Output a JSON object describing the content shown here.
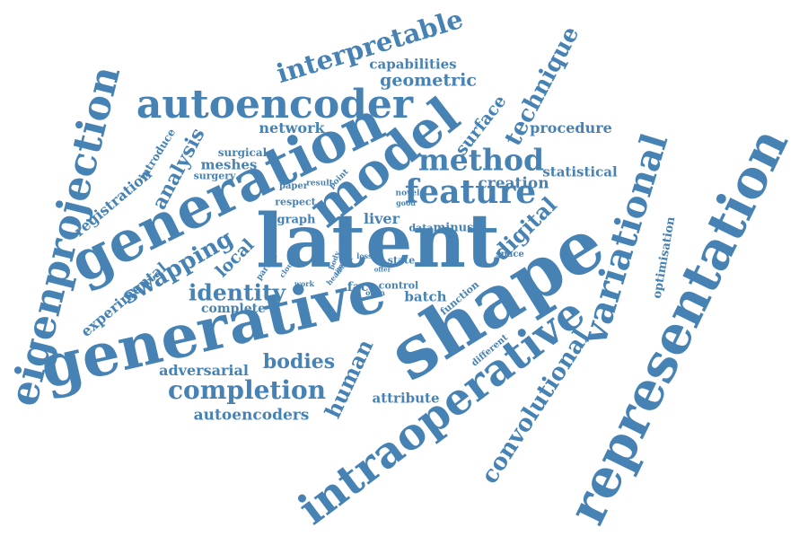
{
  "color": "#4682b4",
  "words": [
    "latent",
    "shape",
    "generative",
    "generation",
    "representation",
    "model",
    "eigenprojection",
    "intraoperative",
    "autoencoder",
    "variational",
    "feature",
    "method",
    "convolutional",
    "interpretable",
    "completion",
    "technique",
    "swapping",
    "identity",
    "analysis",
    "human",
    "digital",
    "bodies",
    "autoencoders",
    "geometric",
    "capabilities",
    "creation",
    "surface",
    "local",
    "experimental",
    "registration",
    "procedure",
    "network",
    "statistical",
    "meshes",
    "adversarial",
    "attribute",
    "complete",
    "optimisation",
    "liver",
    "batch",
    "face",
    "introduce",
    "surgical",
    "surgery",
    "respect",
    "graph",
    "minus",
    "data",
    "function",
    "different",
    "state",
    "space",
    "control",
    "paper",
    "result",
    "point",
    "novel",
    "good",
    "most",
    "offer",
    "open",
    "body",
    "loss",
    "time",
    "head",
    "cloud",
    "partial",
    "work"
  ]
}
